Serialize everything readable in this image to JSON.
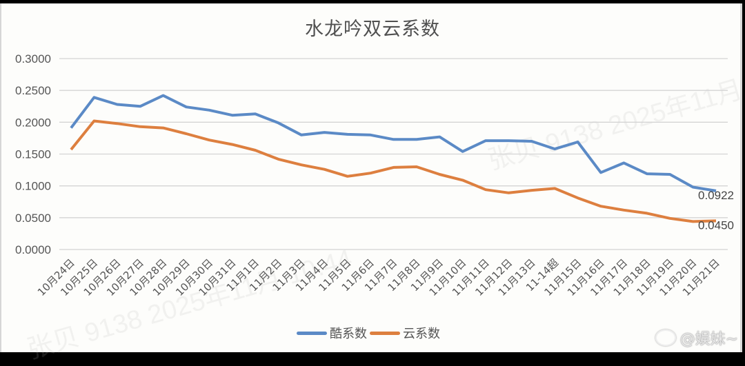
{
  "chart_data": {
    "type": "line",
    "title": "水龙吟双云系数",
    "xlabel": "",
    "ylabel": "",
    "ylim": [
      0,
      0.3
    ],
    "yticks": [
      "0.0000",
      "0.0500",
      "0.1000",
      "0.1500",
      "0.2000",
      "0.2500",
      "0.3000"
    ],
    "grid": true,
    "legend_position": "bottom",
    "categories": [
      "10月24日",
      "10月25日",
      "10月26日",
      "10月27日",
      "10月28日",
      "10月29日",
      "10月30日",
      "10月31日",
      "11月1日",
      "11月2日",
      "11月3日",
      "11月4日",
      "11月5日",
      "11月6日",
      "11月7日",
      "11月8日",
      "11月9日",
      "11月10日",
      "11月11日",
      "11月12日",
      "11月13日",
      "11-14超",
      "11月15日",
      "11月16日",
      "11月17日",
      "11月18日",
      "11月19日",
      "11月20日",
      "11月21日"
    ],
    "series": [
      {
        "name": "酷系数",
        "color": "#5b8ac6",
        "values": [
          0.191,
          0.239,
          0.228,
          0.225,
          0.242,
          0.224,
          0.219,
          0.211,
          0.213,
          0.199,
          0.18,
          0.184,
          0.181,
          0.18,
          0.173,
          0.173,
          0.177,
          0.154,
          0.171,
          0.171,
          0.17,
          0.158,
          0.169,
          0.121,
          0.136,
          0.119,
          0.118,
          0.098,
          0.0922
        ],
        "end_label": "0.0922"
      },
      {
        "name": "云系数",
        "color": "#dd7f3f",
        "values": [
          0.157,
          0.202,
          0.198,
          0.193,
          0.191,
          0.182,
          0.172,
          0.165,
          0.156,
          0.142,
          0.133,
          0.126,
          0.115,
          0.12,
          0.129,
          0.13,
          0.118,
          0.109,
          0.094,
          0.089,
          0.093,
          0.096,
          0.081,
          0.068,
          0.062,
          0.057,
          0.049,
          0.044,
          0.045
        ],
        "end_label": "0.0450"
      }
    ]
  },
  "title": "水龙吟双云系数",
  "legend": [
    {
      "label": "酷系数",
      "color": "#5b8ac6"
    },
    {
      "label": "云系数",
      "color": "#dd7f3f"
    }
  ],
  "watermarks": {
    "diagonal_1": "张贝 9138 2025年11月",
    "diagonal_2": "张贝 9138 2025年11月 10:44"
  },
  "credit": "@娱妹~"
}
